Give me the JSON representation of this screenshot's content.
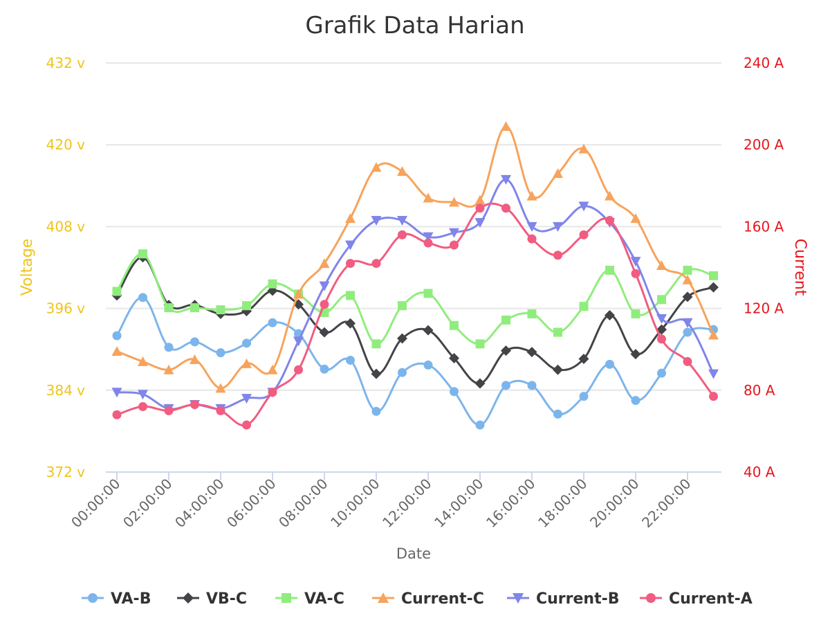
{
  "chart_data": {
    "type": "line",
    "title": "Grafik Data Harian",
    "xlabel": "Date",
    "ylabel_left": "Voltage",
    "ylabel_right": "Current",
    "grid": true,
    "legend_position": "bottom-center",
    "colors": {
      "left_axis": "#f0c419",
      "right_axis": "#e8141c",
      "grid": "#e6e6e6",
      "x_axis": "#ccd6eb"
    },
    "x": [
      "00:00:00",
      "01:00:00",
      "02:00:00",
      "03:00:00",
      "04:00:00",
      "05:00:00",
      "06:00:00",
      "07:00:00",
      "08:00:00",
      "09:00:00",
      "10:00:00",
      "11:00:00",
      "12:00:00",
      "13:00:00",
      "14:00:00",
      "15:00:00",
      "16:00:00",
      "17:00:00",
      "18:00:00",
      "19:00:00",
      "20:00:00",
      "21:00:00",
      "22:00:00",
      "23:00:00"
    ],
    "x_ticks": [
      "00:00:00",
      "02:00:00",
      "04:00:00",
      "06:00:00",
      "08:00:00",
      "10:00:00",
      "12:00:00",
      "14:00:00",
      "16:00:00",
      "18:00:00",
      "20:00:00",
      "22:00:00"
    ],
    "y_left": {
      "min": 372,
      "max": 432,
      "ticks": [
        372,
        384,
        396,
        408,
        420,
        432
      ],
      "tick_labels": [
        "372 v",
        "384 v",
        "396 v",
        "408 v",
        "420 v",
        "432 v"
      ]
    },
    "y_right": {
      "min": 40,
      "max": 240,
      "ticks": [
        40,
        80,
        120,
        160,
        200,
        240
      ],
      "tick_labels": [
        "40 A",
        "80 A",
        "120 A",
        "160 A",
        "200 A",
        "240 A"
      ]
    },
    "series": [
      {
        "name": "VA-B",
        "axis": "left",
        "color": "#7cb5ec",
        "marker": "circle",
        "values": [
          392.0,
          397.6,
          390.3,
          391.1,
          389.5,
          390.9,
          393.9,
          392.3,
          387.1,
          388.4,
          380.9,
          386.6,
          387.7,
          383.8,
          378.9,
          384.7,
          384.7,
          380.5,
          383.1,
          387.8,
          382.5,
          386.5,
          392.5,
          392.9
        ]
      },
      {
        "name": "VB-C",
        "axis": "left",
        "color": "#434348",
        "marker": "diamond",
        "values": [
          397.9,
          403.5,
          396.5,
          396.5,
          395.2,
          395.6,
          398.6,
          396.6,
          392.5,
          393.8,
          386.4,
          391.6,
          392.8,
          388.7,
          385.0,
          389.8,
          389.6,
          387.0,
          388.6,
          395.0,
          389.3,
          392.9,
          397.7,
          399.1
        ]
      },
      {
        "name": "VA-C",
        "axis": "left",
        "color": "#90ed7d",
        "marker": "square",
        "values": [
          398.5,
          404.0,
          396.1,
          396.1,
          395.8,
          396.4,
          399.6,
          398.1,
          395.4,
          397.9,
          390.8,
          396.4,
          398.2,
          393.5,
          390.8,
          394.3,
          395.2,
          392.5,
          396.3,
          401.6,
          395.2,
          397.3,
          401.6,
          400.8
        ]
      },
      {
        "name": "Current-C",
        "axis": "right",
        "color": "#f7a35c",
        "marker": "triangle",
        "values": [
          99,
          94,
          90,
          95,
          81,
          93,
          90,
          127,
          142,
          164,
          189,
          187,
          174,
          172,
          173,
          209,
          175,
          186,
          198,
          175,
          164,
          141,
          134,
          107
        ]
      },
      {
        "name": "Current-B",
        "axis": "right",
        "color": "#8085e9",
        "marker": "triangle-down",
        "values": [
          79,
          78,
          71,
          73,
          71,
          76,
          79,
          104,
          131,
          151,
          163,
          163,
          155,
          157,
          162,
          183,
          160,
          160,
          170,
          162,
          143,
          115,
          113,
          88
        ]
      },
      {
        "name": "Current-A",
        "axis": "right",
        "color": "#f15c80",
        "marker": "circle",
        "values": [
          68,
          72,
          70,
          73,
          70,
          63,
          79,
          90,
          122,
          142,
          142,
          156,
          152,
          151,
          169,
          169,
          154,
          146,
          156,
          163,
          137,
          105,
          94,
          77
        ]
      }
    ]
  }
}
